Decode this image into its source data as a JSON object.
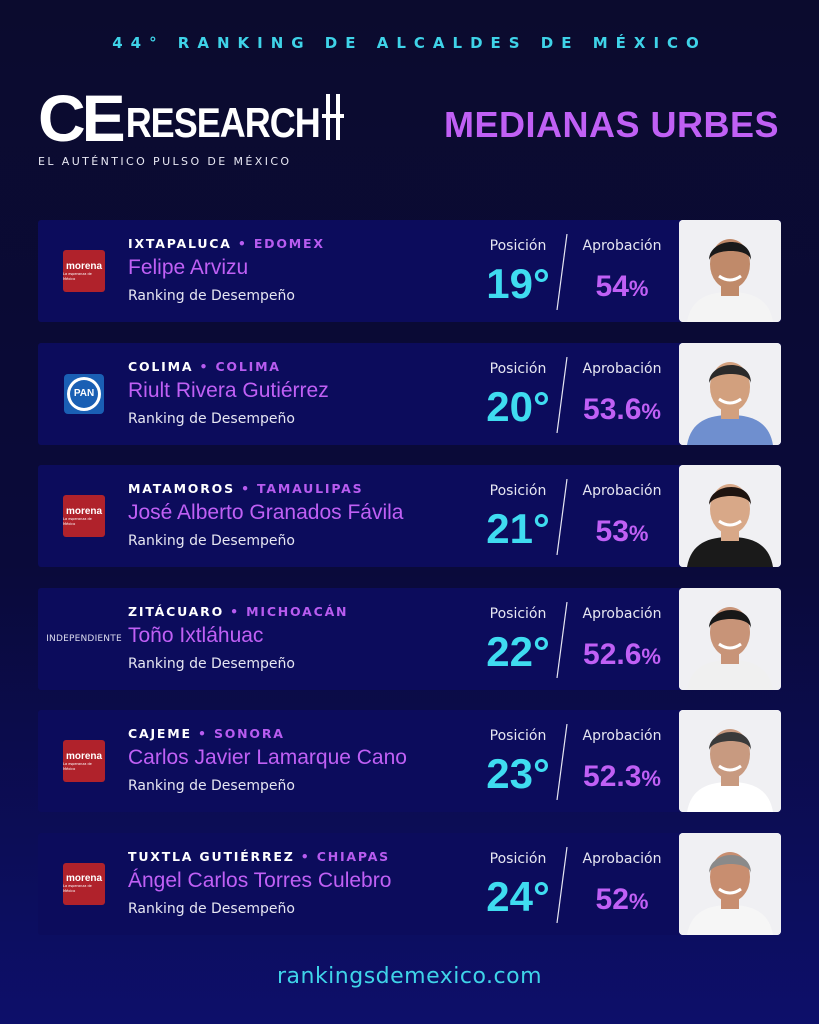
{
  "header": {
    "top_title": "44° RANKING DE ALCALDES DE MÉXICO",
    "logo_ce": "CE",
    "logo_research": "RESEARCH",
    "tagline": "EL AUTÉNTICO PULSO DE MÉXICO",
    "section_title": "MEDIANAS URBES"
  },
  "labels": {
    "position": "Posición",
    "approval": "Aprobación",
    "sub": "Ranking de Desempeño"
  },
  "cards": [
    {
      "city": "IXTAPALUCA",
      "state": "EDOMEX",
      "name": "Felipe Arvizu",
      "position": "19°",
      "approval": "54",
      "party": "morena",
      "party_text": "morena",
      "party_sub": "La esperanza de México"
    },
    {
      "city": "COLIMA",
      "state": "COLIMA",
      "name": "Riult Rivera Gutiérrez",
      "position": "20°",
      "approval": "53.6",
      "party": "pan",
      "party_text": "PAN"
    },
    {
      "city": "MATAMOROS",
      "state": "TAMAULIPAS",
      "name": "José Alberto Granados Fávila",
      "position": "21°",
      "approval": "53",
      "party": "morena",
      "party_text": "morena",
      "party_sub": "La esperanza de México"
    },
    {
      "city": "ZITÁCUARO",
      "state": "MICHOACÁN",
      "name": "Toño Ixtláhuac",
      "position": "22°",
      "approval": "52.6",
      "party": "independiente",
      "party_text": "INDEPENDIENTE"
    },
    {
      "city": "CAJEME",
      "state": "SONORA",
      "name": "Carlos Javier Lamarque Cano",
      "position": "23°",
      "approval": "52.3",
      "party": "morena",
      "party_text": "morena",
      "party_sub": "La esperanza de México"
    },
    {
      "city": "TUXTLA GUTIÉRREZ",
      "state": "CHIAPAS",
      "name": "Ángel Carlos Torres Culebro",
      "position": "24°",
      "approval": "52",
      "party": "morena",
      "party_text": "morena",
      "party_sub": "La esperanza de México"
    }
  ],
  "footer": {
    "url": "rankingsdemexico.com"
  },
  "colors": {
    "accent_cyan": "#3fd3e8",
    "accent_purple": "#c060f5",
    "card_bg": "#0c0c5c",
    "morena_red": "#b0222b",
    "pan_blue": "#1a5fb4"
  }
}
